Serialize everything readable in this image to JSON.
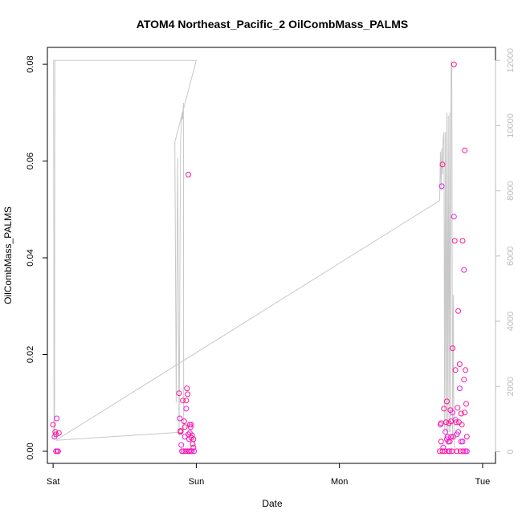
{
  "chart_data": {
    "type": "scatter",
    "title": "ATOM4 Northeast_Pacific_2 OilCombMass_PALMS",
    "xlabel": "Date",
    "ylabel": "OilCombMass_PALMS",
    "x_unit": "days since Sat 00:00",
    "xlim": [
      -0.04,
      3.09
    ],
    "x_ticks": [
      {
        "value": 0,
        "label": "Sat"
      },
      {
        "value": 1,
        "label": "Sun"
      },
      {
        "value": 2,
        "label": "Mon"
      },
      {
        "value": 3,
        "label": "Tue"
      }
    ],
    "ylim": [
      -0.0025,
      0.0835
    ],
    "y_ticks": [
      0.0,
      0.02,
      0.04,
      0.06,
      0.08
    ],
    "y_tick_labels": [
      "0.00",
      "0.02",
      "0.04",
      "0.06",
      "0.08"
    ],
    "y2lim": [
      -360,
      12400
    ],
    "y2_ticks": [
      0,
      2000,
      4000,
      6000,
      8000,
      10000,
      12000
    ],
    "y2_tick_labels": [
      "0",
      "2000",
      "4000",
      "6000",
      "8000",
      "10000",
      "12000"
    ],
    "grid": false,
    "colors": {
      "point_pink": "#ff1493",
      "point_magenta": "#e61fe6",
      "secondary_line": "#c8c8c8",
      "right_axis": "#bdbdbd"
    },
    "series": [
      {
        "role": "points",
        "points": [
          [
            0.0,
            0.0055
          ],
          [
            0.01,
            0.003
          ],
          [
            0.015,
            0.004
          ],
          [
            0.02,
            0.0035
          ],
          [
            0.025,
            0.0068
          ],
          [
            0.02,
            0.0
          ],
          [
            0.03,
            0.0
          ],
          [
            0.035,
            0.0
          ],
          [
            0.04,
            0.0038
          ],
          [
            0.88,
            0.012
          ],
          [
            0.885,
            0.0068
          ],
          [
            0.89,
            0.004
          ],
          [
            0.89,
            0.0042
          ],
          [
            0.895,
            0.0013
          ],
          [
            0.9,
            0.0
          ],
          [
            0.905,
            0.0105
          ],
          [
            0.91,
            0.0
          ],
          [
            0.915,
            0.0062
          ],
          [
            0.92,
            0.005
          ],
          [
            0.92,
            0.003
          ],
          [
            0.925,
            0.0
          ],
          [
            0.93,
            0.0105
          ],
          [
            0.93,
            0.0088
          ],
          [
            0.935,
            0.013
          ],
          [
            0.94,
            0.0118
          ],
          [
            0.94,
            0.0
          ],
          [
            0.945,
            0.0035
          ],
          [
            0.945,
            0.0572
          ],
          [
            0.95,
            0.0025
          ],
          [
            0.95,
            0.0
          ],
          [
            0.955,
            0.0055
          ],
          [
            0.955,
            0.0038
          ],
          [
            0.96,
            0.0
          ],
          [
            0.96,
            0.005
          ],
          [
            0.965,
            0.0055
          ],
          [
            0.965,
            0.0028
          ],
          [
            0.97,
            0.0033
          ],
          [
            0.97,
            0.0
          ],
          [
            0.975,
            0.0015
          ],
          [
            0.98,
            0.0008
          ],
          [
            0.985,
            0.0
          ],
          [
            0.98,
            0.0025
          ],
          [
            2.7,
            0.0
          ],
          [
            2.705,
            0.0055
          ],
          [
            2.71,
            0.0058
          ],
          [
            2.71,
            0.002
          ],
          [
            2.715,
            0.0548
          ],
          [
            2.72,
            0.0593
          ],
          [
            2.72,
            0.0
          ],
          [
            2.725,
            0.0008
          ],
          [
            2.73,
            0.0088
          ],
          [
            2.735,
            0.0
          ],
          [
            2.74,
            0.004
          ],
          [
            2.745,
            0.006
          ],
          [
            2.75,
            0.0103
          ],
          [
            2.75,
            0.0025
          ],
          [
            2.755,
            0.003
          ],
          [
            2.76,
            0.0
          ],
          [
            2.76,
            0.002
          ],
          [
            2.765,
            0.0058
          ],
          [
            2.77,
            0.002
          ],
          [
            2.77,
            0.0
          ],
          [
            2.775,
            0.0085
          ],
          [
            2.78,
            0.0062
          ],
          [
            2.78,
            0.003
          ],
          [
            2.785,
            0.0
          ],
          [
            2.79,
            0.0213
          ],
          [
            2.79,
            0.008
          ],
          [
            2.795,
            0.003
          ],
          [
            2.8,
            0.08
          ],
          [
            2.8,
            0.0485
          ],
          [
            2.805,
            0.0435
          ],
          [
            2.81,
            0.0168
          ],
          [
            2.81,
            0.0065
          ],
          [
            2.815,
            0.006
          ],
          [
            2.82,
            0.0
          ],
          [
            2.82,
            0.0035
          ],
          [
            2.825,
            0.009
          ],
          [
            2.83,
            0.029
          ],
          [
            2.83,
            0.004
          ],
          [
            2.835,
            0.006
          ],
          [
            2.84,
            0.018
          ],
          [
            2.84,
            0.013
          ],
          [
            2.845,
            0.0
          ],
          [
            2.85,
            0.0078
          ],
          [
            2.85,
            0.002
          ],
          [
            2.855,
            0.0055
          ],
          [
            2.86,
            0.0435
          ],
          [
            2.86,
            0.002
          ],
          [
            2.865,
            0.0
          ],
          [
            2.87,
            0.0148
          ],
          [
            2.87,
            0.0375
          ],
          [
            2.875,
            0.0622
          ],
          [
            2.875,
            0.008
          ],
          [
            2.88,
            0.0
          ],
          [
            2.88,
            0.0168
          ],
          [
            2.885,
            0.0098
          ],
          [
            2.89,
            0.0
          ],
          [
            2.89,
            0.003
          ]
        ]
      },
      {
        "role": "secondary_line",
        "axis": "right",
        "points": [
          [
            0.0,
            12000
          ],
          [
            0.004,
            12000
          ],
          [
            0.006,
            500
          ],
          [
            0.01,
            450
          ],
          [
            0.012,
            12000
          ],
          [
            1.0,
            12000
          ],
          [
            0.85,
            9500
          ],
          [
            0.86,
            1500
          ],
          [
            0.87,
            9000
          ],
          [
            0.88,
            500
          ],
          [
            0.89,
            9500
          ],
          [
            0.9,
            10400
          ],
          [
            0.905,
            10200
          ],
          [
            0.91,
            10700
          ],
          [
            0.912,
            600
          ],
          [
            0.02,
            350
          ],
          [
            2.7,
            7700
          ],
          [
            2.705,
            9200
          ],
          [
            2.71,
            8000
          ],
          [
            2.715,
            9300
          ],
          [
            2.72,
            8500
          ],
          [
            2.725,
            9600
          ],
          [
            2.73,
            9800
          ],
          [
            2.735,
            600
          ],
          [
            2.74,
            9800
          ],
          [
            2.745,
            600
          ],
          [
            2.75,
            10400
          ],
          [
            2.755,
            600
          ],
          [
            2.76,
            10300
          ],
          [
            2.765,
            600
          ],
          [
            2.77,
            10400
          ],
          [
            2.775,
            600
          ],
          [
            2.78,
            12000
          ],
          [
            2.785,
            11800
          ],
          [
            2.79,
            400
          ],
          [
            2.795,
            4800
          ],
          [
            2.8,
            300
          ],
          [
            2.805,
            0
          ]
        ]
      }
    ]
  }
}
